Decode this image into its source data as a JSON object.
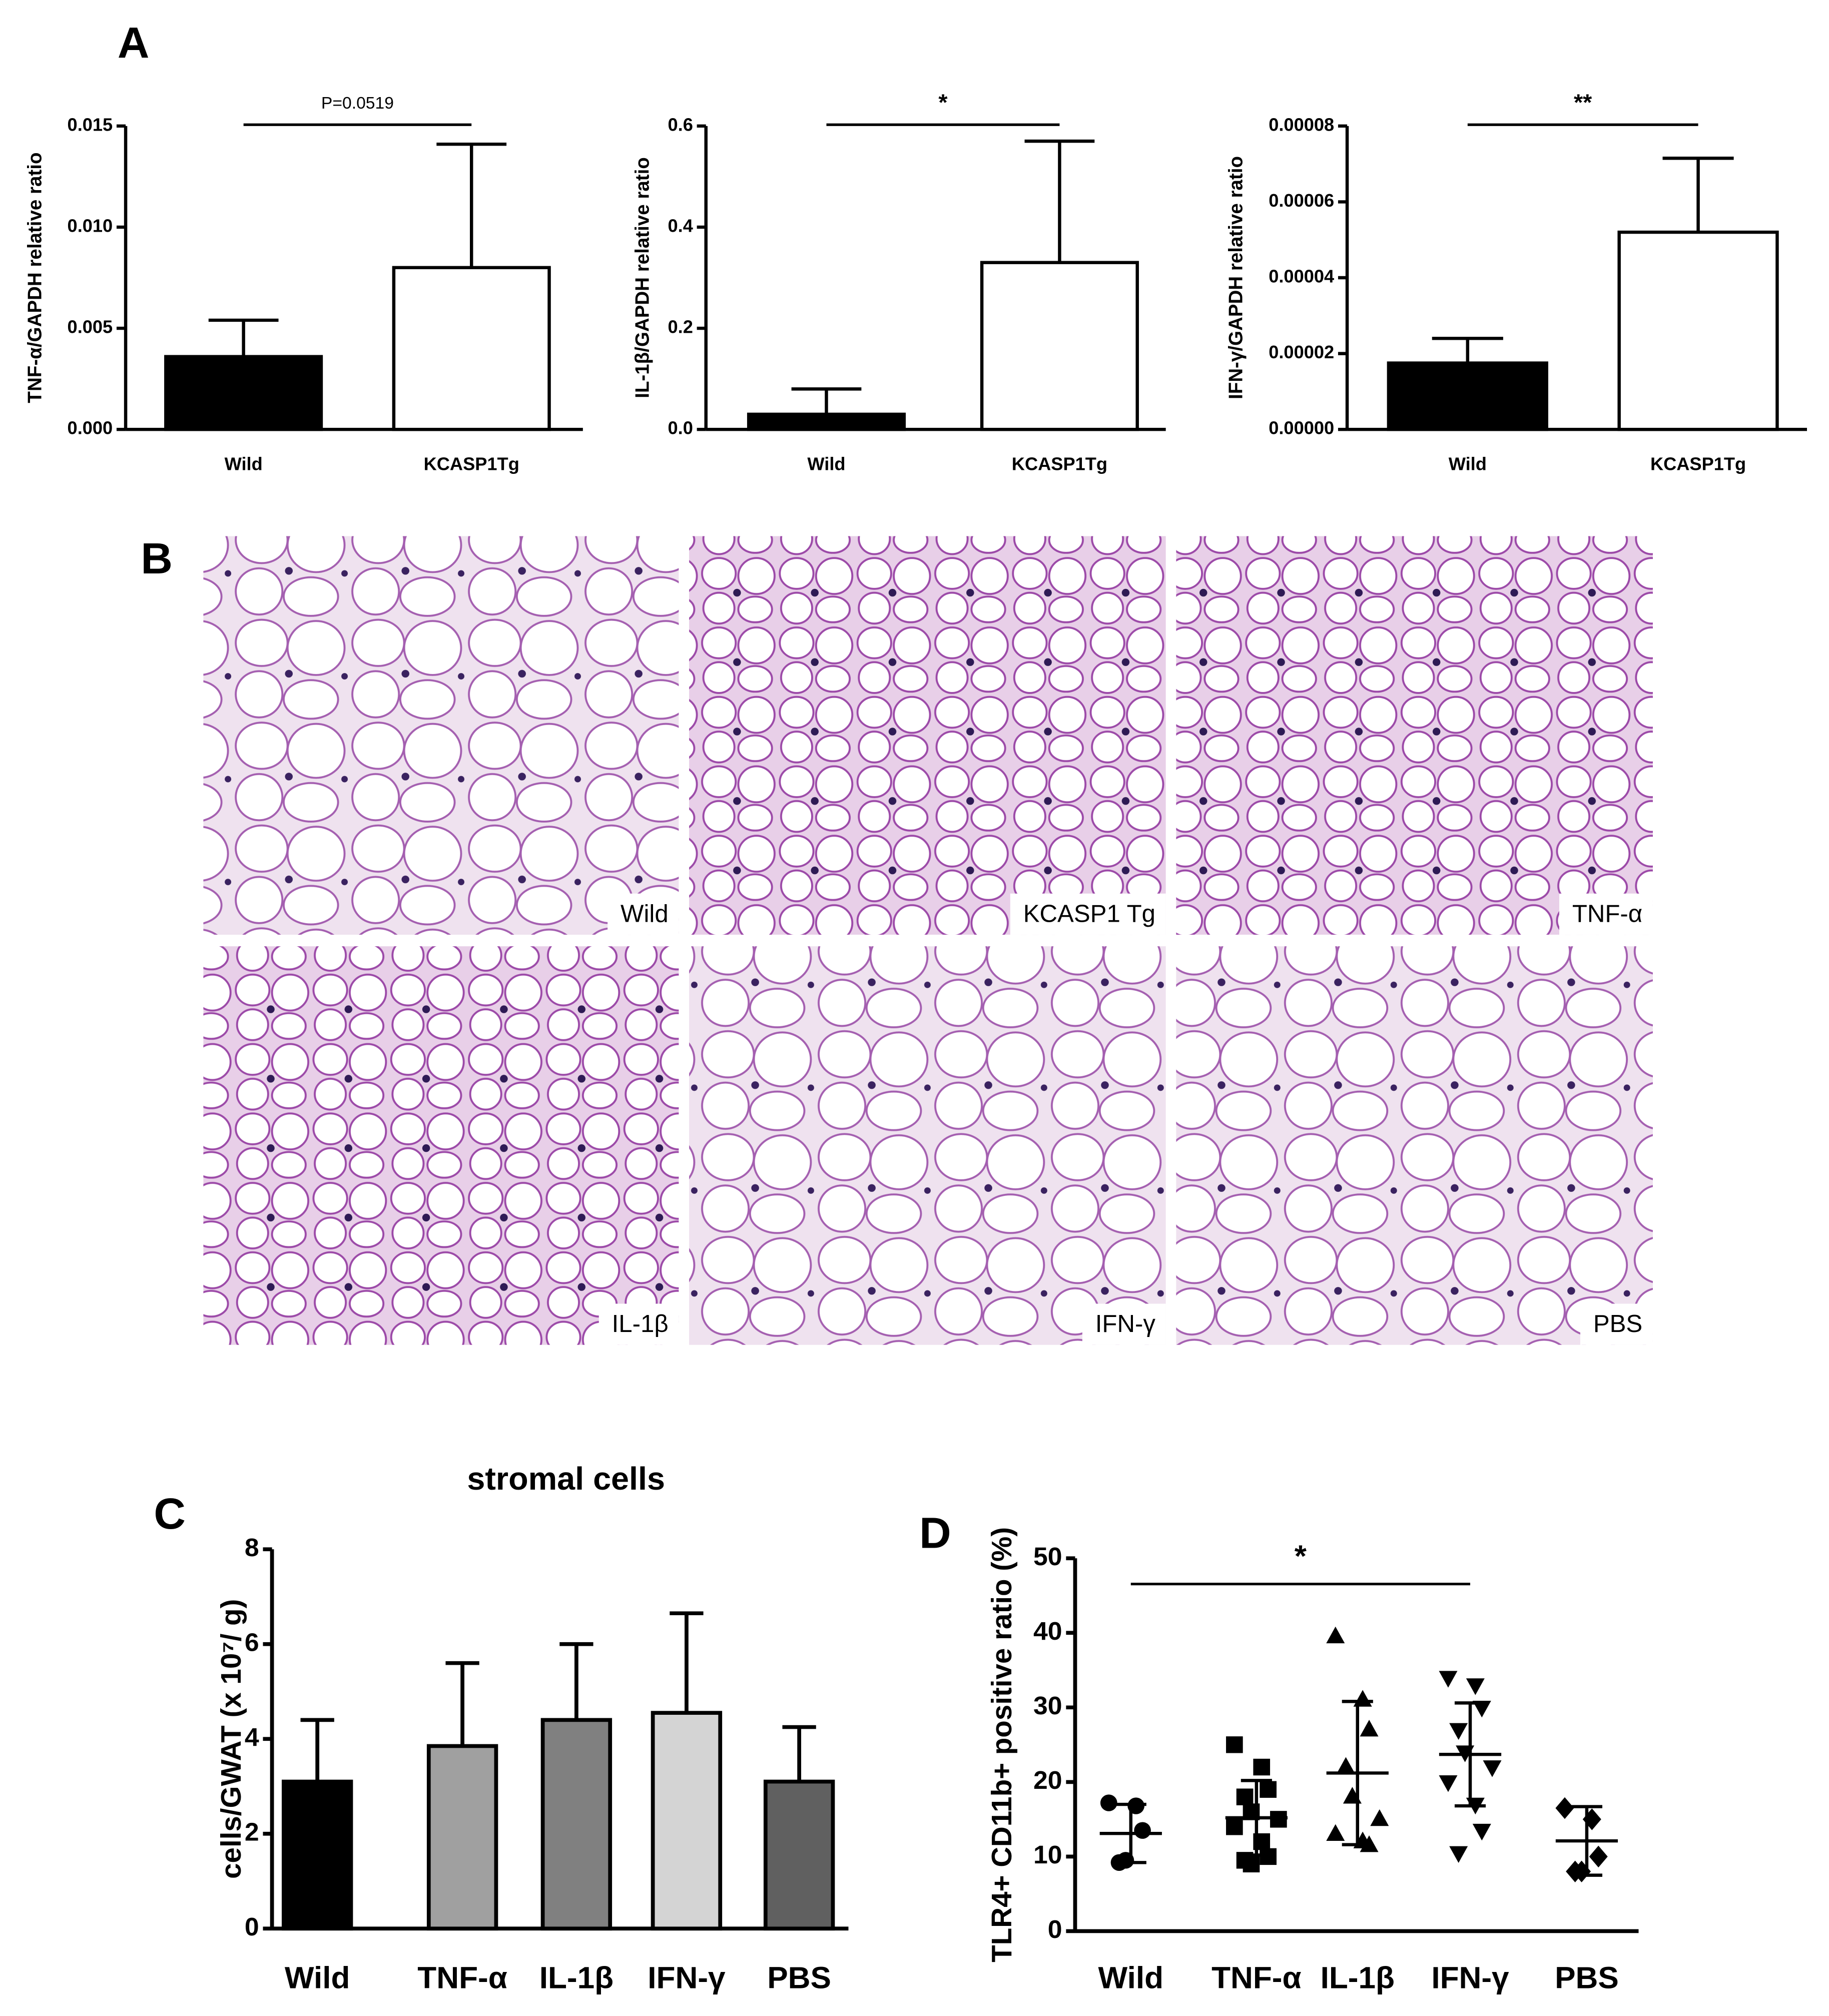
{
  "panel_labels": [
    "A",
    "B",
    "C",
    "D"
  ],
  "micrographs": [
    {
      "label": "Wild"
    },
    {
      "label": "KCASP1 Tg"
    },
    {
      "label": "TNF-α"
    },
    {
      "label": "IL-1β"
    },
    {
      "label": "IFN-γ"
    },
    {
      "label": "PBS"
    }
  ],
  "chart_data": [
    {
      "type": "bar",
      "y_label": "TNF-α/GAPDH relative ratio",
      "categories": [
        "Wild",
        "KCASP1Tg"
      ],
      "values": [
        0.0036,
        0.008
      ],
      "errors": [
        0.0018,
        0.0061
      ],
      "colors": [
        "#000000",
        "#ffffff"
      ],
      "ylim": [
        0,
        0.015
      ],
      "yticks": [
        {
          "value": 0,
          "label": "0.000"
        },
        {
          "value": 0.005,
          "label": "0.005"
        },
        {
          "value": 0.01,
          "label": "0.010"
        },
        {
          "value": 0.015,
          "label": "0.015"
        }
      ],
      "significance": {
        "label": "P=0.0519",
        "groups": [
          "Wild",
          "KCASP1Tg"
        ]
      }
    },
    {
      "type": "bar",
      "y_label": "IL-1β/GAPDH relative ratio",
      "categories": [
        "Wild",
        "KCASP1Tg"
      ],
      "values": [
        0.03,
        0.33
      ],
      "errors": [
        0.05,
        0.24
      ],
      "colors": [
        "#000000",
        "#ffffff"
      ],
      "ylim": [
        0,
        0.6
      ],
      "yticks": [
        {
          "value": 0,
          "label": "0.0"
        },
        0.2,
        0.4,
        0.6
      ],
      "significance": {
        "label": "*",
        "groups": [
          "Wild",
          "KCASP1Tg"
        ]
      }
    },
    {
      "type": "bar",
      "y_label": "IFN-γ/GAPDH relative ratio",
      "categories": [
        "Wild",
        "KCASP1Tg"
      ],
      "values": [
        1.75e-05,
        5.2e-05
      ],
      "errors": [
        6.5e-06,
        1.95e-05
      ],
      "colors": [
        "#000000",
        "#ffffff"
      ],
      "ylim": [
        0,
        8e-05
      ],
      "yticks": [
        {
          "value": 0,
          "label": "0.00000"
        },
        {
          "value": 2e-05,
          "label": "0.00002"
        },
        {
          "value": 4e-05,
          "label": "0.00004"
        },
        {
          "value": 6e-05,
          "label": "0.00006"
        },
        {
          "value": 8e-05,
          "label": "0.00008"
        }
      ],
      "significance": {
        "label": "**",
        "groups": [
          "Wild",
          "KCASP1Tg"
        ]
      }
    },
    {
      "type": "bar",
      "title": "stromal cells",
      "y_label": "cells/GWAT (x 10⁷/ g)",
      "categories": [
        "Wild",
        "TNF-α",
        "IL-1β",
        "IFN-γ",
        "PBS"
      ],
      "values": [
        3.1,
        3.85,
        4.4,
        4.55,
        3.1
      ],
      "errors": [
        1.3,
        1.75,
        1.6,
        2.1,
        1.15
      ],
      "colors": [
        "#000000",
        "#a0a0a0",
        "#808080",
        "#d4d4d4",
        "#606060"
      ],
      "ylim": [
        0,
        8
      ],
      "yticks": [
        0,
        2,
        4,
        6,
        8
      ]
    },
    {
      "type": "scatter",
      "y_label": "TLR4+ CD11b+ positive ratio (%)",
      "categories": [
        "Wild",
        "TNF-α",
        "IL-1β",
        "IFN-γ",
        "PBS"
      ],
      "markers": [
        "circle",
        "square",
        "triangle",
        "triangle-down",
        "diamond"
      ],
      "points": [
        [
          17.2,
          16.8,
          13.5,
          9.2,
          9.5
        ],
        [
          25,
          22,
          19,
          18,
          16,
          15,
          14,
          12,
          10,
          9.5,
          9
        ],
        [
          39.5,
          31,
          27,
          22,
          18,
          15,
          13,
          12,
          11.5
        ],
        [
          34,
          33,
          30,
          27,
          24,
          22,
          20,
          17,
          13.5,
          10.5
        ],
        [
          16.5,
          15,
          10,
          8,
          8
        ]
      ],
      "means": [
        13.1,
        15.2,
        21.2,
        23.7,
        12.1
      ],
      "sds": [
        3.9,
        5,
        9.6,
        6.9,
        4.6
      ],
      "ylim": [
        0,
        50
      ],
      "yticks": [
        0,
        10,
        20,
        30,
        40,
        50
      ],
      "significance": {
        "label": "*",
        "groups": [
          "Wild",
          "IFN-γ"
        ]
      }
    }
  ]
}
